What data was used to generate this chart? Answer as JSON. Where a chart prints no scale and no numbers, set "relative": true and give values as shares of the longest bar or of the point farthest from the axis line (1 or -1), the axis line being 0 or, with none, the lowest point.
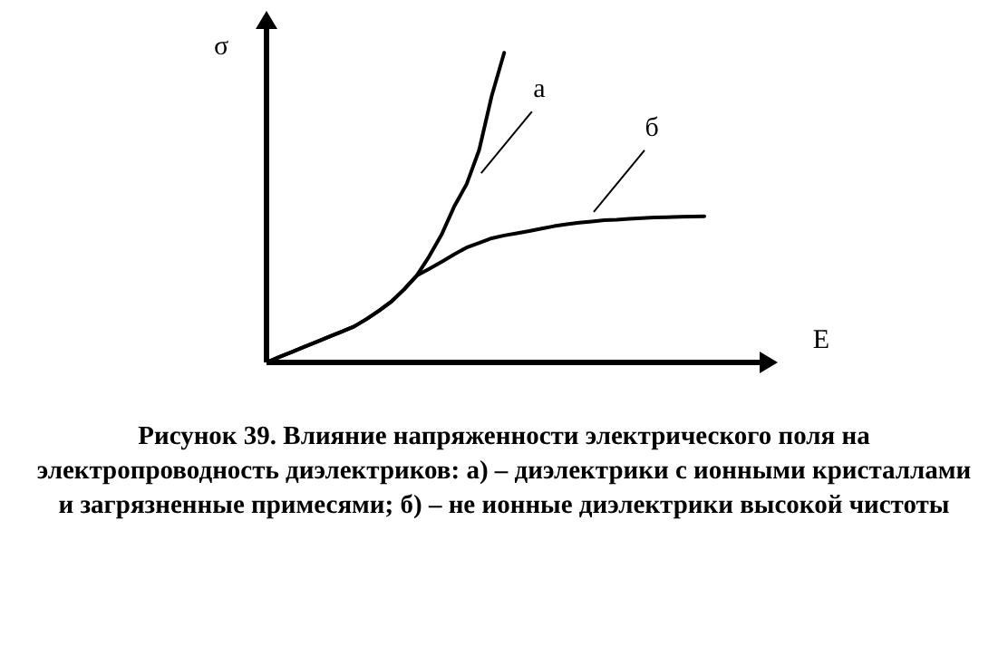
{
  "chart_data": {
    "type": "line",
    "relative": true,
    "line_style": "solid",
    "xlabel": "E",
    "ylabel": "σ",
    "categories": [
      null,
      null,
      null,
      null,
      null,
      null,
      null,
      null,
      null,
      null,
      null,
      null,
      null,
      null,
      null,
      null,
      null,
      null,
      null,
      null,
      null,
      null,
      null,
      null,
      null,
      null,
      null,
      null,
      null,
      null,
      null,
      null,
      null,
      null,
      null,
      null,
      null,
      null,
      null,
      null,
      null
    ],
    "series": [
      {
        "color": "#000000",
        "values": [
          0,
          0.017,
          0.033,
          0.05,
          0.066,
          0.083,
          0.099,
          0.116,
          0.14,
          0.167,
          0.197,
          0.236,
          0.28,
          0.342,
          0.413,
          0.503,
          0.576,
          0.686,
          0.86,
          1,
          null,
          null,
          null,
          null,
          null,
          null,
          null,
          null,
          null,
          null,
          null,
          null,
          null,
          null,
          null,
          null,
          null,
          null,
          null,
          null,
          null
        ]
      },
      {
        "color": "#000000",
        "values": [
          0,
          0.017,
          0.033,
          0.05,
          0.066,
          0.083,
          0.099,
          0.116,
          0.14,
          0.167,
          0.197,
          0.236,
          0.28,
          0.302,
          0.325,
          0.349,
          0.371,
          0.386,
          0.401,
          0.41,
          0.417,
          0.424,
          0.432,
          0.44,
          0.446,
          0.451,
          0.455,
          0.459,
          0.461,
          0.464,
          0.466,
          0.468,
          0.469,
          0.47,
          0.471,
          0.472,
          null,
          null,
          null,
          null,
          null
        ]
      }
    ],
    "annotations": [
      "а",
      "б",
      "Рисунок 39. Влияние напряженности электрического поля на электропроводность диэлектриков: а) – диэлектрики с ионными кристаллами и загрязненные примесями; б) – не ионные диэлектрики высокой чистоты"
    ]
  }
}
